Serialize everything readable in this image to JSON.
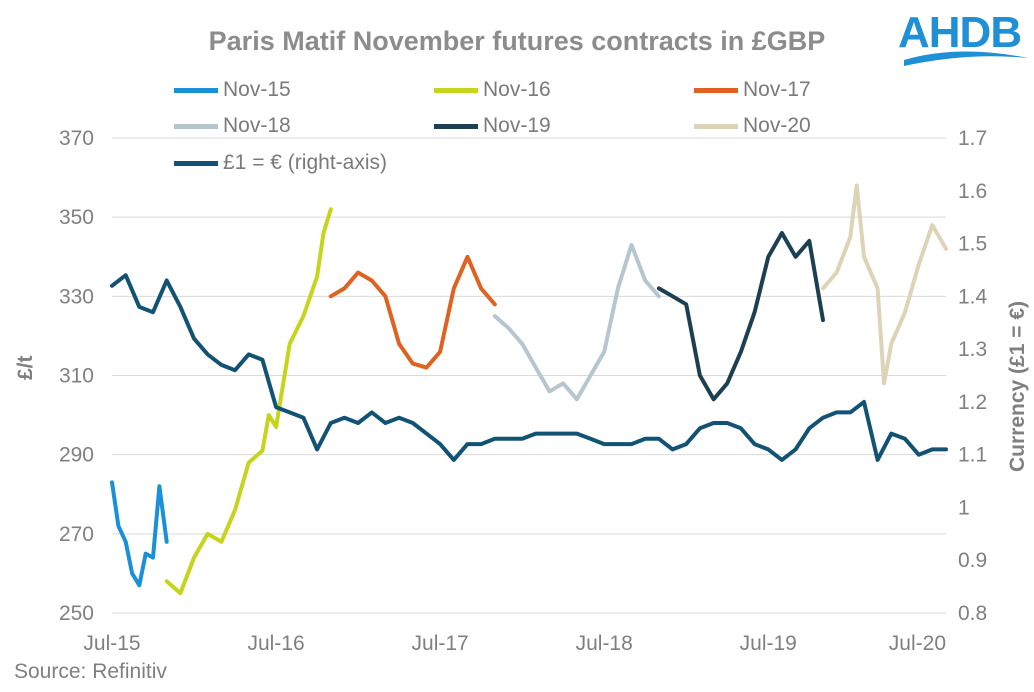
{
  "title": "Paris Matif November futures contracts in £GBP",
  "source": "Source: Refinitiv",
  "logo": {
    "text": "AHDB",
    "color": "#1f8fd6"
  },
  "legend": [
    {
      "label": "Nov-15",
      "color": "#1a90d8"
    },
    {
      "label": "Nov-16",
      "color": "#c6d41c"
    },
    {
      "label": "Nov-17",
      "color": "#e06220"
    },
    {
      "label": "Nov-18",
      "color": "#b6c6cf"
    },
    {
      "label": "Nov-19",
      "color": "#1c3f51"
    },
    {
      "label": "Nov-20",
      "color": "#ddd3b6"
    },
    {
      "label": "£1 = € (right-axis)",
      "color": "#125375"
    }
  ],
  "chart_data": {
    "type": "line",
    "title": "Paris Matif November futures contracts in £GBP",
    "xlabel": "",
    "ylabel": "£/t",
    "y2label": "Currency (£1 = €)",
    "x_ticks": [
      "Jul-15",
      "Jul-16",
      "Jul-17",
      "Jul-18",
      "Jul-19",
      "Jul-20"
    ],
    "xlim": [
      "2015-07",
      "2020-08"
    ],
    "ylim": [
      250,
      370
    ],
    "y_ticks": [
      250,
      270,
      290,
      310,
      330,
      350,
      370
    ],
    "y2lim": [
      0.8,
      1.7
    ],
    "y2_ticks": [
      0.8,
      0.9,
      1,
      1.1,
      1.2,
      1.3,
      1.4,
      1.5,
      1.6,
      1.7
    ],
    "grid": "horizontal",
    "legend_position": "top",
    "series": [
      {
        "name": "Nov-15",
        "axis": "left",
        "color": "#1a90d8",
        "x": [
          "2015-07",
          "2015-07-15",
          "2015-08",
          "2015-08-15",
          "2015-09",
          "2015-09-15",
          "2015-10",
          "2015-10-15",
          "2015-11"
        ],
        "y": [
          283,
          272,
          268,
          260,
          257,
          265,
          264,
          282,
          268
        ]
      },
      {
        "name": "Nov-16",
        "axis": "left",
        "color": "#c6d41c",
        "x": [
          "2015-11",
          "2015-12",
          "2016-01",
          "2016-02",
          "2016-03",
          "2016-04",
          "2016-05",
          "2016-06",
          "2016-06-15",
          "2016-07",
          "2016-08",
          "2016-09",
          "2016-10",
          "2016-10-15",
          "2016-11"
        ],
        "y": [
          258,
          255,
          264,
          270,
          268,
          276,
          288,
          291,
          300,
          297,
          318,
          325,
          335,
          346,
          352
        ]
      },
      {
        "name": "Nov-17",
        "axis": "left",
        "color": "#e06220",
        "x": [
          "2016-11",
          "2016-12",
          "2017-01",
          "2017-02",
          "2017-03",
          "2017-04",
          "2017-05",
          "2017-06",
          "2017-07",
          "2017-08",
          "2017-09",
          "2017-10",
          "2017-11"
        ],
        "y": [
          330,
          332,
          336,
          334,
          330,
          318,
          313,
          312,
          316,
          332,
          340,
          332,
          328
        ]
      },
      {
        "name": "Nov-18",
        "axis": "left",
        "color": "#b6c6cf",
        "x": [
          "2017-11",
          "2017-12",
          "2018-01",
          "2018-02",
          "2018-03",
          "2018-04",
          "2018-05",
          "2018-06",
          "2018-07",
          "2018-08",
          "2018-09",
          "2018-10",
          "2018-11"
        ],
        "y": [
          325,
          322,
          318,
          312,
          306,
          308,
          304,
          310,
          316,
          332,
          343,
          334,
          330
        ]
      },
      {
        "name": "Nov-19",
        "axis": "left",
        "color": "#1c3f51",
        "x": [
          "2018-11",
          "2018-12",
          "2019-01",
          "2019-02",
          "2019-03",
          "2019-04",
          "2019-05",
          "2019-06",
          "2019-07",
          "2019-08",
          "2019-09",
          "2019-10",
          "2019-11"
        ],
        "y": [
          332,
          330,
          328,
          310,
          304,
          308,
          316,
          326,
          340,
          346,
          340,
          344,
          324
        ]
      },
      {
        "name": "Nov-20",
        "axis": "left",
        "color": "#ddd3b6",
        "x": [
          "2019-11",
          "2019-12",
          "2020-01",
          "2020-01-15",
          "2020-02",
          "2020-03",
          "2020-03-15",
          "2020-04",
          "2020-05",
          "2020-06",
          "2020-07",
          "2020-08"
        ],
        "y": [
          332,
          336,
          345,
          358,
          340,
          332,
          308,
          318,
          326,
          338,
          348,
          342
        ]
      },
      {
        "name": "£1 = € (right-axis)",
        "axis": "right",
        "color": "#125375",
        "x": [
          "2015-07",
          "2015-08",
          "2015-09",
          "2015-10",
          "2015-11",
          "2015-12",
          "2016-01",
          "2016-02",
          "2016-03",
          "2016-04",
          "2016-05",
          "2016-06",
          "2016-07",
          "2016-08",
          "2016-09",
          "2016-10",
          "2016-11",
          "2016-12",
          "2017-01",
          "2017-02",
          "2017-03",
          "2017-04",
          "2017-05",
          "2017-06",
          "2017-07",
          "2017-08",
          "2017-09",
          "2017-10",
          "2017-11",
          "2017-12",
          "2018-01",
          "2018-02",
          "2018-03",
          "2018-04",
          "2018-05",
          "2018-06",
          "2018-07",
          "2018-08",
          "2018-09",
          "2018-10",
          "2018-11",
          "2018-12",
          "2019-01",
          "2019-02",
          "2019-03",
          "2019-04",
          "2019-05",
          "2019-06",
          "2019-07",
          "2019-08",
          "2019-09",
          "2019-10",
          "2019-11",
          "2019-12",
          "2020-01",
          "2020-02",
          "2020-03",
          "2020-04",
          "2020-05",
          "2020-06",
          "2020-07",
          "2020-08"
        ],
        "y": [
          1.42,
          1.44,
          1.38,
          1.37,
          1.43,
          1.38,
          1.32,
          1.29,
          1.27,
          1.26,
          1.29,
          1.28,
          1.19,
          1.18,
          1.17,
          1.11,
          1.16,
          1.17,
          1.16,
          1.18,
          1.16,
          1.17,
          1.16,
          1.14,
          1.12,
          1.09,
          1.12,
          1.12,
          1.13,
          1.13,
          1.13,
          1.14,
          1.14,
          1.14,
          1.14,
          1.13,
          1.12,
          1.12,
          1.12,
          1.13,
          1.13,
          1.11,
          1.12,
          1.15,
          1.16,
          1.16,
          1.15,
          1.12,
          1.11,
          1.09,
          1.11,
          1.15,
          1.17,
          1.18,
          1.18,
          1.2,
          1.09,
          1.14,
          1.13,
          1.1,
          1.11,
          1.11
        ]
      }
    ]
  }
}
